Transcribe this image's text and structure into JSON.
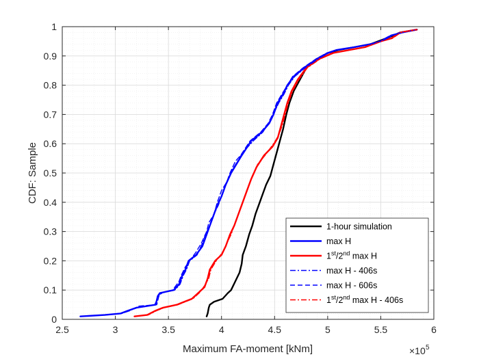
{
  "chart_data": {
    "type": "line",
    "title": "",
    "xlabel": "Maximum FA-moment [kNm]",
    "ylabel": "CDF: Sample",
    "x_multiplier_label": "×10",
    "x_multiplier_exp": "5",
    "xlim": [
      2.5,
      6
    ],
    "ylim": [
      0,
      1
    ],
    "xticks": [
      2.5,
      3,
      3.5,
      4,
      4.5,
      5,
      5.5,
      6
    ],
    "xtick_labels": [
      "2.5",
      "3",
      "3.5",
      "4",
      "4.5",
      "5",
      "5.5",
      "6"
    ],
    "yticks": [
      0,
      0.1,
      0.2,
      0.3,
      0.4,
      0.5,
      0.6,
      0.7,
      0.8,
      0.9,
      1
    ],
    "ytick_labels": [
      "0",
      "0.1",
      "0.2",
      "0.3",
      "0.4",
      "0.5",
      "0.6",
      "0.7",
      "0.8",
      "0.9",
      "1"
    ],
    "grid": "major-and-minor",
    "legend_position": "bottom-right",
    "series": [
      {
        "label_parts": [
          {
            "t": "1-hour simulation"
          }
        ],
        "color": "#000000",
        "style": "solid",
        "points": [
          [
            3.86,
            0.01
          ],
          [
            3.87,
            0.02
          ],
          [
            3.88,
            0.04
          ],
          [
            3.89,
            0.05
          ],
          [
            3.93,
            0.06
          ],
          [
            4.01,
            0.07
          ],
          [
            4.06,
            0.09
          ],
          [
            4.09,
            0.1
          ],
          [
            4.13,
            0.13
          ],
          [
            4.17,
            0.16
          ],
          [
            4.19,
            0.19
          ],
          [
            4.2,
            0.22
          ],
          [
            4.23,
            0.25
          ],
          [
            4.26,
            0.29
          ],
          [
            4.29,
            0.32
          ],
          [
            4.32,
            0.36
          ],
          [
            4.36,
            0.4
          ],
          [
            4.39,
            0.43
          ],
          [
            4.42,
            0.46
          ],
          [
            4.46,
            0.49
          ],
          [
            4.49,
            0.53
          ],
          [
            4.52,
            0.57
          ],
          [
            4.55,
            0.61
          ],
          [
            4.58,
            0.65
          ],
          [
            4.61,
            0.7
          ],
          [
            4.64,
            0.74
          ],
          [
            4.68,
            0.78
          ],
          [
            4.74,
            0.82
          ],
          [
            4.8,
            0.86
          ],
          [
            4.9,
            0.89
          ],
          [
            5.0,
            0.91
          ],
          [
            5.1,
            0.92
          ],
          [
            5.25,
            0.93
          ],
          [
            5.4,
            0.94
          ],
          [
            5.55,
            0.96
          ],
          [
            5.62,
            0.97
          ],
          [
            5.68,
            0.98
          ],
          [
            5.84,
            0.99
          ]
        ]
      },
      {
        "label_parts": [
          {
            "t": "max H"
          }
        ],
        "color": "#0000ff",
        "style": "solid",
        "points": [
          [
            2.67,
            0.01
          ],
          [
            2.9,
            0.015
          ],
          [
            3.05,
            0.02
          ],
          [
            3.12,
            0.03
          ],
          [
            3.2,
            0.04
          ],
          [
            3.38,
            0.05
          ],
          [
            3.4,
            0.08
          ],
          [
            3.42,
            0.09
          ],
          [
            3.55,
            0.1
          ],
          [
            3.6,
            0.12
          ],
          [
            3.63,
            0.15
          ],
          [
            3.66,
            0.17
          ],
          [
            3.69,
            0.2
          ],
          [
            3.76,
            0.22
          ],
          [
            3.82,
            0.25
          ],
          [
            3.86,
            0.29
          ],
          [
            3.89,
            0.32
          ],
          [
            3.92,
            0.35
          ],
          [
            3.96,
            0.39
          ],
          [
            4.0,
            0.42
          ],
          [
            4.04,
            0.46
          ],
          [
            4.09,
            0.5
          ],
          [
            4.14,
            0.53
          ],
          [
            4.19,
            0.56
          ],
          [
            4.28,
            0.61
          ],
          [
            4.38,
            0.64
          ],
          [
            4.45,
            0.67
          ],
          [
            4.49,
            0.7
          ],
          [
            4.53,
            0.74
          ],
          [
            4.58,
            0.77
          ],
          [
            4.62,
            0.8
          ],
          [
            4.68,
            0.83
          ],
          [
            4.78,
            0.86
          ],
          [
            4.9,
            0.89
          ],
          [
            5.0,
            0.91
          ],
          [
            5.08,
            0.92
          ],
          [
            5.25,
            0.93
          ],
          [
            5.4,
            0.94
          ],
          [
            5.5,
            0.95
          ],
          [
            5.6,
            0.97
          ],
          [
            5.7,
            0.98
          ],
          [
            5.84,
            0.99
          ]
        ]
      },
      {
        "label_parts": [
          {
            "t": "1"
          },
          {
            "t": "st",
            "sup": true
          },
          {
            "t": "/2"
          },
          {
            "t": "nd",
            "sup": true
          },
          {
            "t": " max H"
          }
        ],
        "color": "#ff0000",
        "style": "solid",
        "points": [
          [
            3.18,
            0.01
          ],
          [
            3.3,
            0.015
          ],
          [
            3.38,
            0.03
          ],
          [
            3.45,
            0.04
          ],
          [
            3.58,
            0.05
          ],
          [
            3.65,
            0.06
          ],
          [
            3.72,
            0.07
          ],
          [
            3.78,
            0.09
          ],
          [
            3.84,
            0.11
          ],
          [
            3.87,
            0.14
          ],
          [
            3.89,
            0.17
          ],
          [
            3.94,
            0.2
          ],
          [
            4.0,
            0.22
          ],
          [
            4.04,
            0.25
          ],
          [
            4.08,
            0.29
          ],
          [
            4.12,
            0.32
          ],
          [
            4.16,
            0.36
          ],
          [
            4.2,
            0.4
          ],
          [
            4.24,
            0.44
          ],
          [
            4.28,
            0.48
          ],
          [
            4.33,
            0.52
          ],
          [
            4.4,
            0.56
          ],
          [
            4.48,
            0.59
          ],
          [
            4.53,
            0.62
          ],
          [
            4.56,
            0.66
          ],
          [
            4.59,
            0.7
          ],
          [
            4.62,
            0.74
          ],
          [
            4.66,
            0.78
          ],
          [
            4.72,
            0.82
          ],
          [
            4.8,
            0.86
          ],
          [
            4.92,
            0.89
          ],
          [
            5.05,
            0.91
          ],
          [
            5.2,
            0.92
          ],
          [
            5.35,
            0.93
          ],
          [
            5.5,
            0.95
          ],
          [
            5.6,
            0.96
          ],
          [
            5.68,
            0.98
          ],
          [
            5.84,
            0.99
          ]
        ]
      },
      {
        "label_parts": [
          {
            "t": "max H - 406s"
          }
        ],
        "color": "#0000ff",
        "style": "dashdot",
        "points": [
          [
            2.67,
            0.01
          ],
          [
            2.92,
            0.015
          ],
          [
            3.06,
            0.02
          ],
          [
            3.13,
            0.03
          ],
          [
            3.21,
            0.04
          ],
          [
            3.37,
            0.05
          ],
          [
            3.41,
            0.08
          ],
          [
            3.43,
            0.09
          ],
          [
            3.56,
            0.1
          ],
          [
            3.61,
            0.12
          ],
          [
            3.64,
            0.15
          ],
          [
            3.67,
            0.17
          ],
          [
            3.7,
            0.2
          ],
          [
            3.77,
            0.22
          ],
          [
            3.82,
            0.26
          ],
          [
            3.85,
            0.29
          ],
          [
            3.9,
            0.33
          ],
          [
            3.93,
            0.36
          ],
          [
            3.97,
            0.39
          ],
          [
            4.01,
            0.43
          ],
          [
            4.05,
            0.47
          ],
          [
            4.1,
            0.51
          ],
          [
            4.15,
            0.54
          ],
          [
            4.2,
            0.57
          ],
          [
            4.3,
            0.61
          ],
          [
            4.39,
            0.64
          ],
          [
            4.46,
            0.68
          ],
          [
            4.5,
            0.71
          ],
          [
            4.54,
            0.74
          ],
          [
            4.59,
            0.77
          ],
          [
            4.63,
            0.8
          ],
          [
            4.69,
            0.83
          ],
          [
            4.79,
            0.86
          ],
          [
            4.91,
            0.89
          ],
          [
            5.01,
            0.91
          ],
          [
            5.09,
            0.92
          ],
          [
            5.26,
            0.93
          ],
          [
            5.41,
            0.94
          ],
          [
            5.51,
            0.95
          ],
          [
            5.61,
            0.97
          ],
          [
            5.71,
            0.98
          ],
          [
            5.84,
            0.99
          ]
        ]
      },
      {
        "label_parts": [
          {
            "t": "max H - 606s"
          }
        ],
        "color": "#0000ff",
        "style": "dashed",
        "points": [
          [
            2.67,
            0.01
          ],
          [
            2.91,
            0.015
          ],
          [
            3.06,
            0.02
          ],
          [
            3.14,
            0.03
          ],
          [
            3.22,
            0.045
          ],
          [
            3.39,
            0.05
          ],
          [
            3.41,
            0.08
          ],
          [
            3.44,
            0.09
          ],
          [
            3.54,
            0.1
          ],
          [
            3.6,
            0.13
          ],
          [
            3.62,
            0.15
          ],
          [
            3.66,
            0.18
          ],
          [
            3.7,
            0.2
          ],
          [
            3.76,
            0.23
          ],
          [
            3.81,
            0.26
          ],
          [
            3.86,
            0.3
          ],
          [
            3.88,
            0.33
          ],
          [
            3.93,
            0.36
          ],
          [
            3.96,
            0.4
          ],
          [
            4.0,
            0.44
          ],
          [
            4.05,
            0.47
          ],
          [
            4.08,
            0.5
          ],
          [
            4.13,
            0.54
          ],
          [
            4.18,
            0.56
          ],
          [
            4.27,
            0.61
          ],
          [
            4.37,
            0.64
          ],
          [
            4.44,
            0.67
          ],
          [
            4.48,
            0.7
          ],
          [
            4.52,
            0.74
          ],
          [
            4.57,
            0.77
          ],
          [
            4.62,
            0.8
          ],
          [
            4.67,
            0.83
          ],
          [
            4.77,
            0.86
          ],
          [
            4.89,
            0.89
          ],
          [
            4.99,
            0.91
          ],
          [
            5.08,
            0.92
          ],
          [
            5.24,
            0.93
          ],
          [
            5.39,
            0.94
          ],
          [
            5.49,
            0.95
          ],
          [
            5.59,
            0.97
          ],
          [
            5.69,
            0.98
          ],
          [
            5.84,
            0.99
          ]
        ]
      },
      {
        "label_parts": [
          {
            "t": "1"
          },
          {
            "t": "st",
            "sup": true
          },
          {
            "t": "/2"
          },
          {
            "t": "nd",
            "sup": true
          },
          {
            "t": " max H - 406s"
          }
        ],
        "color": "#ff0000",
        "style": "dashdot",
        "points": [
          [
            3.18,
            0.01
          ],
          [
            3.31,
            0.015
          ],
          [
            3.39,
            0.03
          ],
          [
            3.46,
            0.04
          ],
          [
            3.59,
            0.05
          ],
          [
            3.66,
            0.06
          ],
          [
            3.73,
            0.07
          ],
          [
            3.79,
            0.09
          ],
          [
            3.85,
            0.12
          ],
          [
            3.88,
            0.14
          ],
          [
            3.9,
            0.17
          ],
          [
            3.95,
            0.2
          ],
          [
            4.01,
            0.23
          ],
          [
            4.05,
            0.26
          ],
          [
            4.09,
            0.29
          ],
          [
            4.13,
            0.33
          ],
          [
            4.17,
            0.37
          ],
          [
            4.21,
            0.41
          ],
          [
            4.25,
            0.45
          ],
          [
            4.29,
            0.49
          ],
          [
            4.34,
            0.53
          ],
          [
            4.41,
            0.56
          ],
          [
            4.49,
            0.6
          ],
          [
            4.54,
            0.63
          ],
          [
            4.57,
            0.66
          ],
          [
            4.6,
            0.7
          ],
          [
            4.63,
            0.74
          ],
          [
            4.67,
            0.78
          ],
          [
            4.73,
            0.82
          ],
          [
            4.81,
            0.86
          ],
          [
            4.93,
            0.89
          ],
          [
            5.06,
            0.91
          ],
          [
            5.21,
            0.92
          ],
          [
            5.36,
            0.93
          ],
          [
            5.51,
            0.95
          ],
          [
            5.61,
            0.96
          ],
          [
            5.69,
            0.98
          ],
          [
            5.84,
            0.99
          ]
        ]
      }
    ]
  }
}
